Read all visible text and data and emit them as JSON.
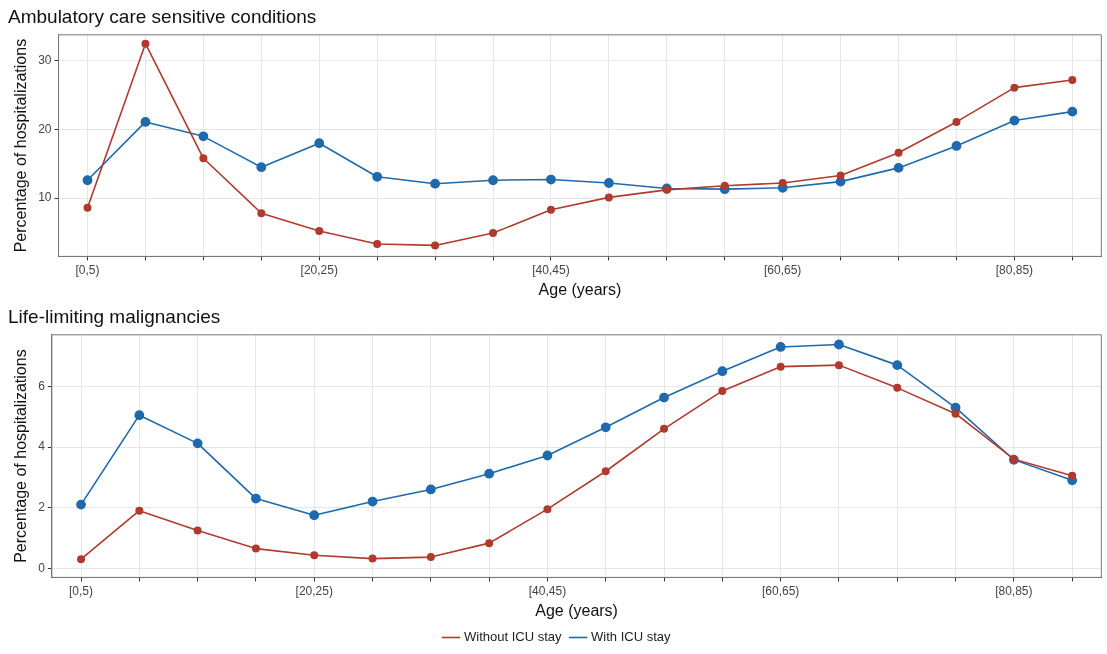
{
  "chart_data": [
    {
      "type": "line",
      "title": "Ambulatory care sensitive conditions",
      "xlabel": "Age (years)",
      "ylabel": "Percentage of hospitalizations",
      "categories": [
        "[0,5)",
        null,
        null,
        null,
        "[20,25)",
        null,
        null,
        null,
        "[40,45)",
        null,
        null,
        null,
        "[60,65)",
        null,
        null,
        null,
        "[80,85)",
        null
      ],
      "series": [
        {
          "color": "#b03a2e",
          "values": [
            8.6,
            32.5,
            15.8,
            7.8,
            5.2,
            3.3,
            3.1,
            4.9,
            8.3,
            10.1,
            11.2,
            11.8,
            12.2,
            13.3,
            16.6,
            21.1,
            26.1,
            27.2
          ]
        },
        {
          "color": "#1f6aad",
          "values": [
            12.6,
            21.1,
            19.0,
            14.5,
            18.0,
            13.1,
            12.1,
            12.6,
            12.7,
            12.2,
            11.4,
            11.3,
            11.5,
            12.4,
            14.4,
            17.6,
            21.3,
            22.6
          ]
        }
      ],
      "ylim": [
        1.5,
        33.8
      ],
      "yticks": [
        10,
        20,
        30
      ],
      "grid": true,
      "marker": "circle",
      "line_style": "solid",
      "legend": false
    },
    {
      "type": "line",
      "title": "Life-limiting malignancies",
      "xlabel": "Age (years)",
      "ylabel": "Percentage of hospitalizations",
      "categories": [
        "[0,5)",
        null,
        null,
        null,
        "[20,25)",
        null,
        null,
        null,
        "[40,45)",
        null,
        null,
        null,
        "[60,65)",
        null,
        null,
        null,
        "[80,85)",
        null
      ],
      "series": [
        {
          "name": "Without ICU stay",
          "color": "#b03a2e",
          "values": [
            0.3,
            1.9,
            1.25,
            0.65,
            0.43,
            0.32,
            0.37,
            0.83,
            1.95,
            3.2,
            4.6,
            5.85,
            6.65,
            6.7,
            5.95,
            5.1,
            3.6,
            3.05
          ]
        },
        {
          "name": "With ICU stay",
          "color": "#1f6aad",
          "values": [
            2.1,
            5.05,
            4.12,
            2.3,
            1.75,
            2.2,
            2.6,
            3.12,
            3.72,
            4.65,
            5.63,
            6.5,
            7.3,
            7.38,
            6.7,
            5.3,
            3.58,
            2.9
          ]
        }
      ],
      "ylim": [
        -0.3,
        7.7
      ],
      "yticks": [
        0,
        2,
        4,
        6
      ],
      "grid": true,
      "marker": "circle",
      "line_style": "solid",
      "legend": "bottom"
    }
  ]
}
